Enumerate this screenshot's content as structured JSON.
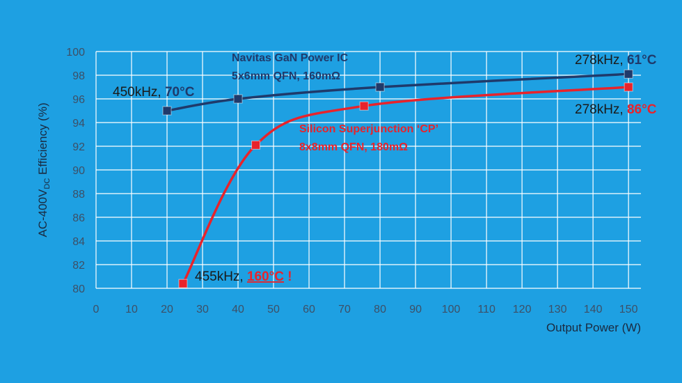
{
  "chart_data": {
    "type": "line",
    "xlabel": "Output Power (W)",
    "ylabel": [
      "AC-400V",
      "DC",
      " Efficiency (%)"
    ],
    "xlim": [
      0,
      153.5
    ],
    "ylim": [
      80,
      100
    ],
    "xticks": [
      0,
      10,
      20,
      30,
      40,
      50,
      60,
      70,
      80,
      90,
      100,
      110,
      120,
      130,
      140,
      150
    ],
    "yticks": [
      80,
      82,
      84,
      86,
      88,
      90,
      92,
      94,
      96,
      98,
      100
    ],
    "grid": true,
    "series": [
      {
        "name": "Navitas GaN Power IC",
        "detail": "5x6mm QFN, 160mΩ",
        "color": "#1f3a6b",
        "x": [
          20,
          40,
          80,
          150
        ],
        "values": [
          95,
          96,
          97,
          98.1
        ],
        "annotations": [
          [
            "450kHz, ",
            "70°C"
          ],
          [
            "278kHz, ",
            "61°C"
          ]
        ]
      },
      {
        "name": "Silicon Superjunction ‘CP’",
        "detail": "8x8mm QFN, 180mΩ",
        "color": "#e8232b",
        "x": [
          24.5,
          45,
          75.5,
          150
        ],
        "values": [
          80.4,
          92.1,
          95.4,
          97
        ],
        "annotations": [
          [
            "278kHz, ",
            "86°C"
          ],
          [
            "455kHz, ",
            "160°C",
            " !"
          ]
        ]
      }
    ]
  }
}
